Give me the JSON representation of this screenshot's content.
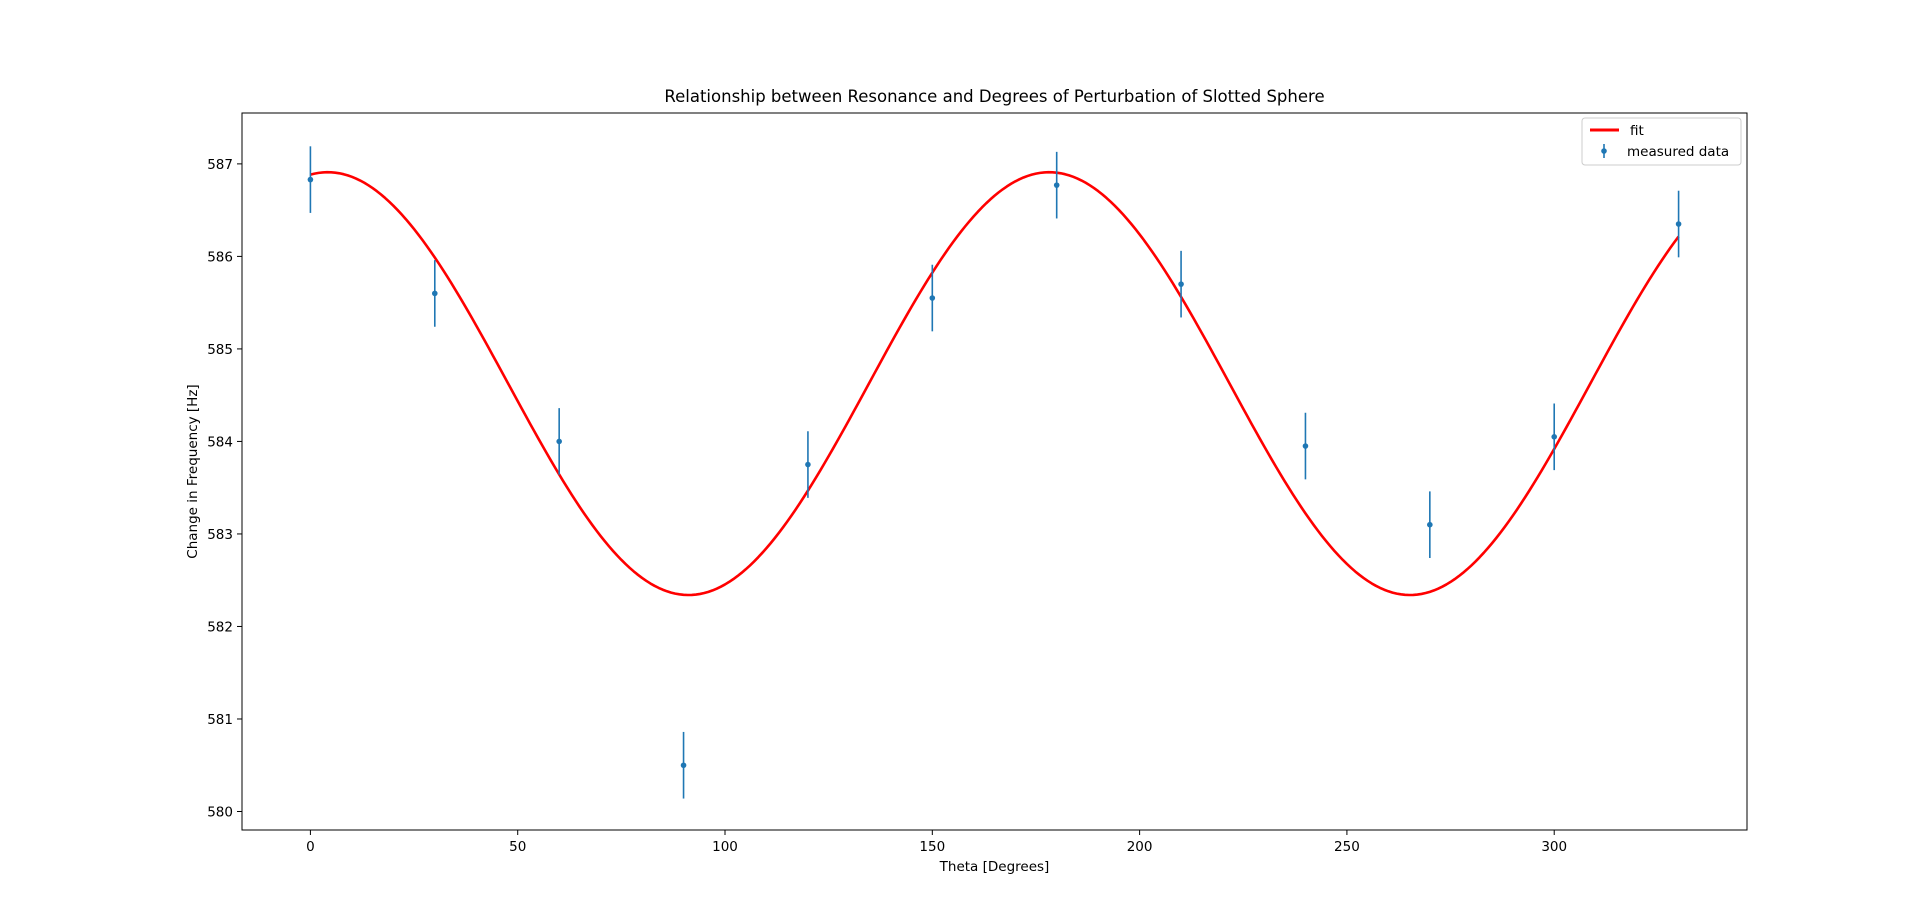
{
  "chart_data": {
    "type": "scatter",
    "title": "Relationship between Resonance and Degrees of Perturbation of Slotted Sphere",
    "xlabel": "Theta [Degrees]",
    "ylabel": "Change in Frequency [Hz]",
    "xlim": [
      -16.5,
      346.5
    ],
    "ylim": [
      579.8,
      587.55
    ],
    "xticks": [
      0,
      50,
      100,
      150,
      200,
      250,
      300
    ],
    "yticks": [
      580,
      581,
      582,
      583,
      584,
      585,
      586,
      587
    ],
    "grid": false,
    "legend_position": "top-right",
    "series": [
      {
        "name": "fit",
        "kind": "line",
        "color": "#ff0000",
        "fit": {
          "amplitude": 2.285,
          "offset": 584.625,
          "period_deg": 174,
          "phase_deg": 4.2,
          "x_range": [
            0,
            330
          ]
        }
      },
      {
        "name": "measured data",
        "kind": "errorbar",
        "color": "#1f77b4",
        "x": [
          0,
          30,
          60,
          90,
          120,
          150,
          180,
          210,
          240,
          270,
          300,
          330
        ],
        "y": [
          586.83,
          585.6,
          584.0,
          580.5,
          583.75,
          585.55,
          586.77,
          585.7,
          583.95,
          583.1,
          584.05,
          586.35
        ],
        "yerr": [
          0.36,
          0.36,
          0.36,
          0.36,
          0.36,
          0.36,
          0.36,
          0.36,
          0.36,
          0.36,
          0.36,
          0.36
        ]
      }
    ]
  }
}
